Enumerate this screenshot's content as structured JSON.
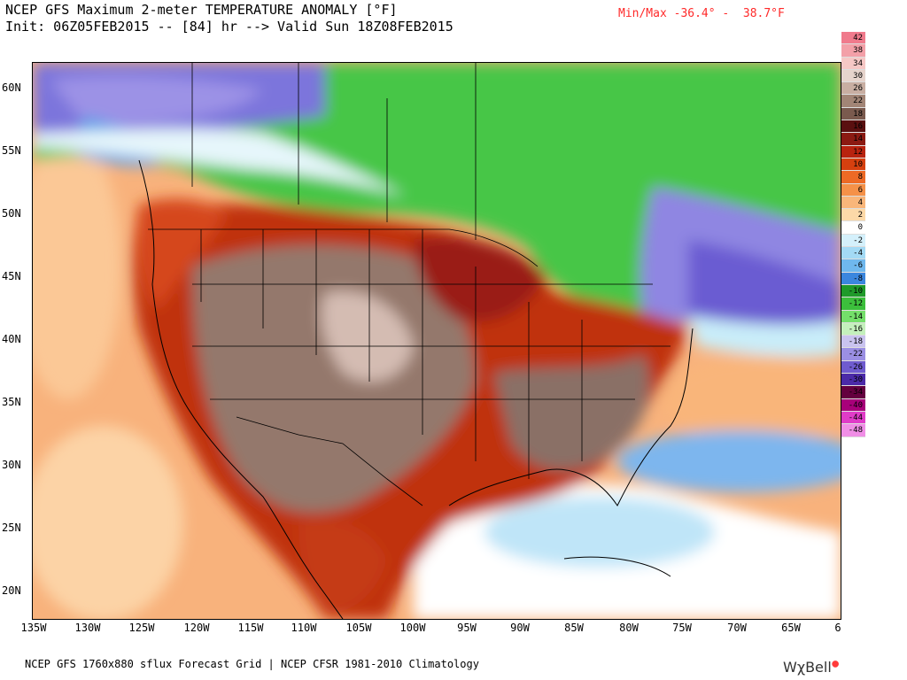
{
  "header": {
    "title": "NCEP GFS Maximum 2-meter TEMPERATURE ANOMALY [°F]",
    "init_line": "Init: 06Z05FEB2015 -- [84] hr --> Valid Sun 18Z08FEB2015",
    "minmax": "Min/Max -36.4° -  38.7°F"
  },
  "map": {
    "lat_labels": [
      "60N",
      "55N",
      "50N",
      "45N",
      "40N",
      "35N",
      "30N",
      "25N",
      "20N"
    ],
    "lon_labels": [
      "135W",
      "130W",
      "125W",
      "120W",
      "115W",
      "110W",
      "105W",
      "100W",
      "95W",
      "90W",
      "85W",
      "80W",
      "75W",
      "70W",
      "65W",
      "6"
    ]
  },
  "colorbar": {
    "levels": [
      {
        "label": "42",
        "color": "#f07a8c"
      },
      {
        "label": "38",
        "color": "#f3a0a8"
      },
      {
        "label": "34",
        "color": "#f6c8c6"
      },
      {
        "label": "30",
        "color": "#e6d4cc"
      },
      {
        "label": "26",
        "color": "#c8aea2"
      },
      {
        "label": "22",
        "color": "#a28576"
      },
      {
        "label": "18",
        "color": "#7a5a4e"
      },
      {
        "label": "16",
        "color": "#5a1010"
      },
      {
        "label": "14",
        "color": "#8b1a12"
      },
      {
        "label": "12",
        "color": "#b8230f"
      },
      {
        "label": "10",
        "color": "#d6400f"
      },
      {
        "label": "8",
        "color": "#ed6a25"
      },
      {
        "label": "6",
        "color": "#f59148"
      },
      {
        "label": "4",
        "color": "#f9b67a"
      },
      {
        "label": "2",
        "color": "#fcd9a8"
      },
      {
        "label": "0",
        "color": "#ffffff"
      },
      {
        "label": "-2",
        "color": "#d4f0fb"
      },
      {
        "label": "-4",
        "color": "#a3daf5"
      },
      {
        "label": "-6",
        "color": "#6fb8ee"
      },
      {
        "label": "-8",
        "color": "#3b86de"
      },
      {
        "label": "-10",
        "color": "#1f9a2a"
      },
      {
        "label": "-12",
        "color": "#3cbf3c"
      },
      {
        "label": "-14",
        "color": "#74df6a"
      },
      {
        "label": "-16",
        "color": "#c4f0bc"
      },
      {
        "label": "-18",
        "color": "#c9c3ef"
      },
      {
        "label": "-22",
        "color": "#9b8fe3"
      },
      {
        "label": "-26",
        "color": "#6f5bcf"
      },
      {
        "label": "-30",
        "color": "#4b2aa8"
      },
      {
        "label": "-34",
        "color": "#64003f"
      },
      {
        "label": "-40",
        "color": "#a8007a"
      },
      {
        "label": "-44",
        "color": "#e03cc8"
      },
      {
        "label": "-48",
        "color": "#f08ee6"
      }
    ]
  },
  "footer": {
    "source": "NCEP GFS 1760x880 sflux Forecast Grid | NCEP CFSR 1981-2010 Climatology",
    "brand": "WχBell"
  }
}
